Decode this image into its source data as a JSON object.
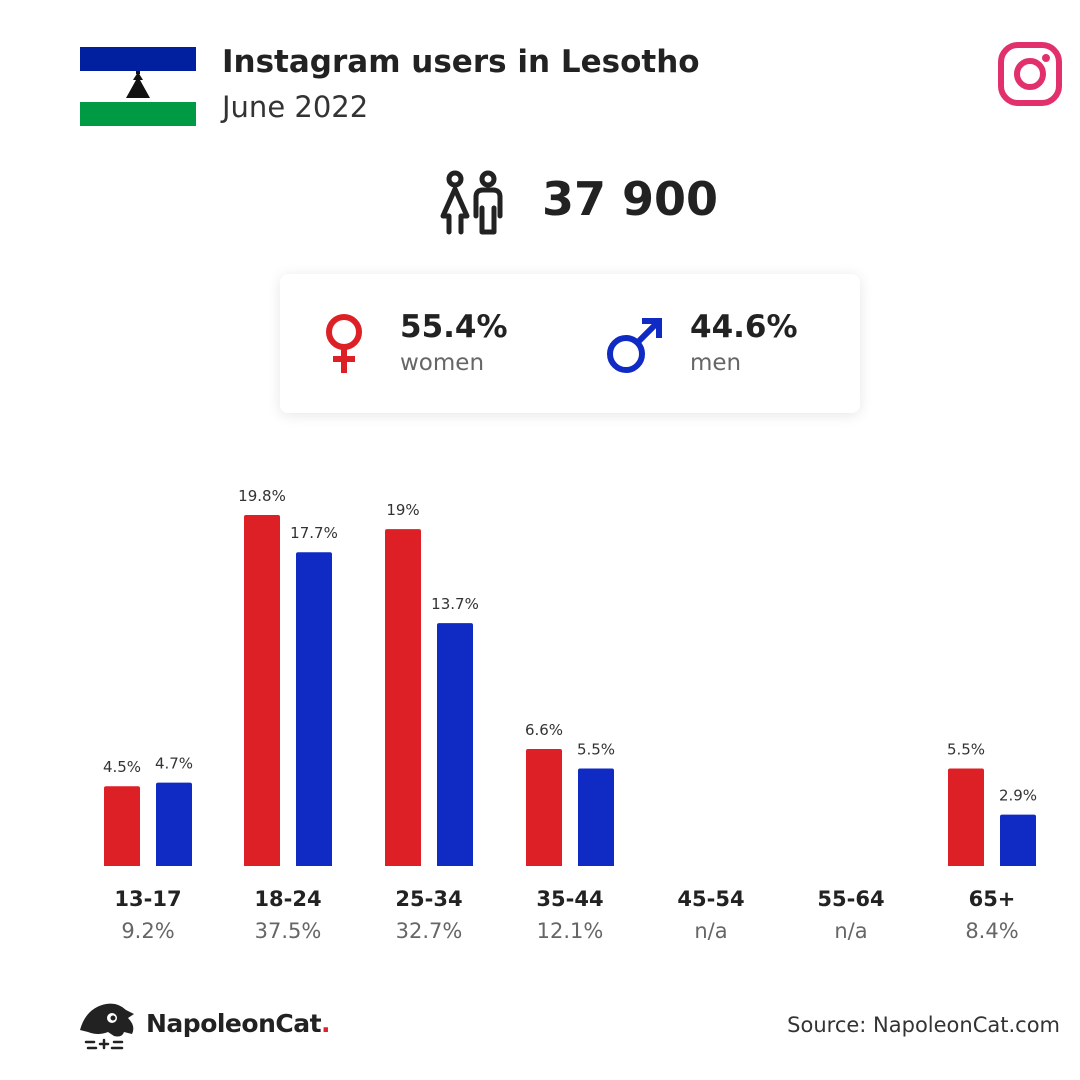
{
  "header": {
    "title": "Instagram users in Lesotho",
    "subtitle": "June 2022"
  },
  "icons": {
    "flag": "lesotho-flag",
    "platform": "instagram-icon",
    "people": "people-icon",
    "female": "female-symbol-icon",
    "male": "male-symbol-icon",
    "brand": "napoleoncat-logo"
  },
  "total_users": "37 900",
  "gender": {
    "women_pct": "55.4%",
    "women_label": "women",
    "men_pct": "44.6%",
    "men_label": "men"
  },
  "colors": {
    "women": "#dd1f26",
    "men": "#0f2bc4",
    "instagram": "#e1306c"
  },
  "chart_data": {
    "type": "bar",
    "categories": [
      "13-17",
      "18-24",
      "25-34",
      "35-44",
      "45-54",
      "55-64",
      "65+"
    ],
    "category_totals": [
      "9.2%",
      "37.5%",
      "32.7%",
      "12.1%",
      "n/a",
      "n/a",
      "8.4%"
    ],
    "series": [
      {
        "values": [
          4.5,
          19.8,
          19,
          6.6,
          null,
          null,
          5.5
        ],
        "labels": [
          "4.5%",
          "19.8%",
          "19%",
          "6.6%",
          "",
          "",
          "5.5%"
        ]
      },
      {
        "values": [
          4.7,
          17.7,
          13.7,
          5.5,
          null,
          null,
          2.9
        ],
        "labels": [
          "4.7%",
          "17.7%",
          "13.7%",
          "5.5%",
          "",
          "",
          "2.9%"
        ]
      }
    ],
    "ylim": [
      0,
      19.8
    ],
    "grid": false
  },
  "footer": {
    "brand_name": "NapoleonCat",
    "brand_dot": ".",
    "source": "Source: NapoleonCat.com"
  }
}
